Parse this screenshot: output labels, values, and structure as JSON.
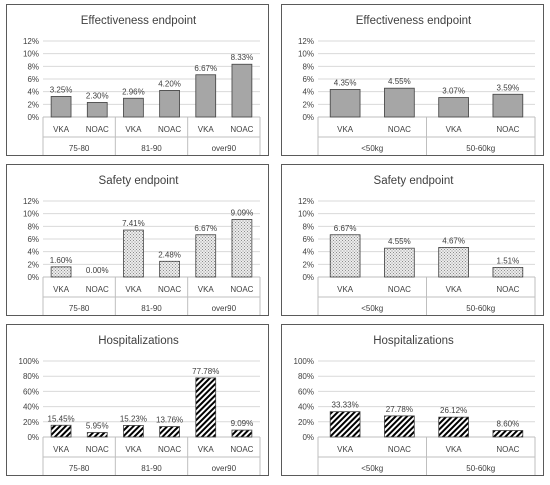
{
  "chart_data": [
    {
      "type": "bar",
      "title": "Effectiveness endpoint",
      "categories": [
        "VKA",
        "NOAC",
        "VKA",
        "NOAC",
        "VKA",
        "NOAC"
      ],
      "groups": [
        "75-80",
        "81-90",
        "over90"
      ],
      "values": [
        3.25,
        2.3,
        2.96,
        4.2,
        6.67,
        8.33
      ],
      "data_labels": [
        "3.25%",
        "2.30%",
        "2.96%",
        "4.20%",
        "6.67%",
        "8.33%"
      ],
      "y_ticks": [
        "0%",
        "2%",
        "4%",
        "6%",
        "8%",
        "10%",
        "12%"
      ],
      "ylim": [
        0,
        12
      ],
      "fill": "solid",
      "fill_color": "#a6a6a6",
      "grid": true
    },
    {
      "type": "bar",
      "title": "Effectiveness endpoint",
      "categories": [
        "VKA",
        "NOAC",
        "VKA",
        "NOAC"
      ],
      "groups": [
        "<50kg",
        "50-60kg"
      ],
      "values": [
        4.35,
        4.55,
        3.07,
        3.59
      ],
      "data_labels": [
        "4.35%",
        "4.55%",
        "3.07%",
        "3.59%"
      ],
      "y_ticks": [
        "0%",
        "2%",
        "4%",
        "6%",
        "8%",
        "10%",
        "12%"
      ],
      "ylim": [
        0,
        12
      ],
      "fill": "solid",
      "fill_color": "#a6a6a6",
      "grid": true
    },
    {
      "type": "bar",
      "title": "Safety endpoint",
      "categories": [
        "VKA",
        "NOAC",
        "VKA",
        "NOAC",
        "VKA",
        "NOAC"
      ],
      "groups": [
        "75-80",
        "81-90",
        "over90"
      ],
      "values": [
        1.6,
        0.0,
        7.41,
        2.48,
        6.67,
        9.09
      ],
      "data_labels": [
        "1.60%",
        "0.00%",
        "7.41%",
        "2.48%",
        "6.67%",
        "9.09%"
      ],
      "y_ticks": [
        "0%",
        "2%",
        "4%",
        "6%",
        "8%",
        "10%",
        "12%"
      ],
      "ylim": [
        0,
        12
      ],
      "fill": "dotted",
      "fill_color": "#d9d9d9",
      "grid": true
    },
    {
      "type": "bar",
      "title": "Safety endpoint",
      "categories": [
        "VKA",
        "NOAC",
        "VKA",
        "NOAC"
      ],
      "groups": [
        "<50kg",
        "50-60kg"
      ],
      "values": [
        6.67,
        4.55,
        4.67,
        1.51
      ],
      "data_labels": [
        "6.67%",
        "4.55%",
        "4.67%",
        "1.51%"
      ],
      "y_ticks": [
        "0%",
        "2%",
        "4%",
        "6%",
        "8%",
        "10%",
        "12%"
      ],
      "ylim": [
        0,
        12
      ],
      "fill": "dotted",
      "fill_color": "#d9d9d9",
      "grid": true
    },
    {
      "type": "bar",
      "title": "Hospitalizations",
      "categories": [
        "VKA",
        "NOAC",
        "VKA",
        "NOAC",
        "VKA",
        "NOAC"
      ],
      "groups": [
        "75-80",
        "81-90",
        "over90"
      ],
      "values": [
        15.45,
        5.95,
        15.23,
        13.76,
        77.78,
        9.09
      ],
      "data_labels": [
        "15.45%",
        "5.95%",
        "15.23%",
        "13.76%",
        "77.78%",
        "9.09%"
      ],
      "y_ticks": [
        "0%",
        "20%",
        "40%",
        "60%",
        "80%",
        "100%"
      ],
      "ylim": [
        0,
        100
      ],
      "fill": "hatched",
      "fill_color": "#000000",
      "grid": true
    },
    {
      "type": "bar",
      "title": "Hospitalizations",
      "categories": [
        "VKA",
        "NOAC",
        "VKA",
        "NOAC"
      ],
      "groups": [
        "<50kg",
        "50-60kg"
      ],
      "values": [
        33.33,
        27.78,
        26.12,
        8.6
      ],
      "data_labels": [
        "33.33%",
        "27.78%",
        "26.12%",
        "8.60%"
      ],
      "y_ticks": [
        "0%",
        "20%",
        "40%",
        "60%",
        "80%",
        "100%"
      ],
      "ylim": [
        0,
        100
      ],
      "fill": "hatched",
      "fill_color": "#000000",
      "grid": true
    }
  ]
}
